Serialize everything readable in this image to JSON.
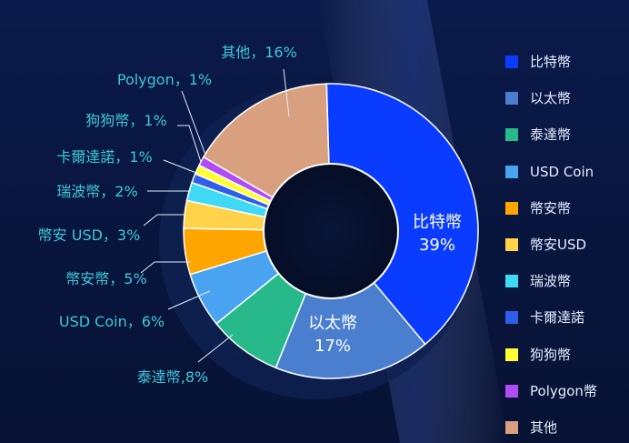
{
  "chart_data": {
    "type": "pie",
    "donut": true,
    "categories": [
      "比特幣",
      "以太幣",
      "泰達幣",
      "USD Coin",
      "幣安幣",
      "幣安USD",
      "瑞波幣",
      "卡爾達諾",
      "狗狗幣",
      "Polygon幣",
      "其他"
    ],
    "values": [
      39,
      17,
      8,
      6,
      5,
      3,
      2,
      1,
      1,
      1,
      16
    ],
    "colors": [
      "#0a3cff",
      "#4a7fd0",
      "#27b98a",
      "#4aa3f0",
      "#ffa500",
      "#ffd24a",
      "#3fd8f5",
      "#2f5fe8",
      "#ffff33",
      "#b04bf5",
      "#d8a07e"
    ],
    "slice_labels": [
      {
        "name": "比特幣",
        "value": "39%"
      },
      {
        "name": "以太幣",
        "value": "17%"
      },
      {
        "text": "泰達幣,8%"
      },
      {
        "text": "USD Coin，6%"
      },
      {
        "text": "幣安幣，5%"
      },
      {
        "text": "幣安 USD，3%"
      },
      {
        "text": "瑞波幣，2%"
      },
      {
        "text": "卡爾達諾，1%"
      },
      {
        "text": "狗狗幣，1%"
      },
      {
        "text": "Polygon，1%"
      },
      {
        "text": "其他，16%"
      }
    ],
    "legend": {
      "position": "right",
      "entries": [
        "比特幣",
        "以太幣",
        "泰達幣",
        "USD Coin",
        "幣安幣",
        "幣安USD",
        "瑞波幣",
        "卡爾達諾",
        "狗狗幣",
        "Polygon幣",
        "其他"
      ]
    }
  }
}
